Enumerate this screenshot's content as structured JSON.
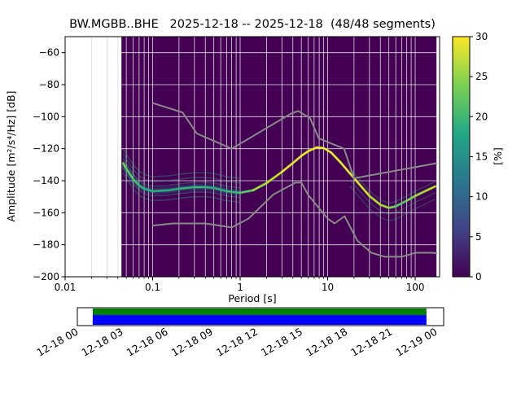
{
  "chart_data": {
    "type": "heatmap",
    "title": "BW.MGBB..BHE   2025-12-18 -- 2025-12-18  (48/48 segments)",
    "xlabel": "Period [s]",
    "ylabel": "Amplitude [m²/s⁴/Hz] [dB]",
    "colorbar_label": "[%]",
    "xlim_log": [
      0.01,
      190
    ],
    "ylim": [
      -200,
      -50
    ],
    "xtick_values": [
      0.01,
      0.1,
      1,
      10,
      100
    ],
    "xtick_labels": [
      "0.01",
      "0.1",
      "1",
      "10",
      "100"
    ],
    "ytick_values": [
      -60,
      -80,
      -100,
      -120,
      -140,
      -160,
      -180,
      -200
    ],
    "ytick_labels": [
      "−60",
      "−80",
      "−100",
      "−120",
      "−140",
      "−160",
      "−180",
      "−200"
    ],
    "background_color": "#440154",
    "grid_color": "#ffffff",
    "grid_color_no_data": "#d9d9d9",
    "data_extent": {
      "period_min": 0.044,
      "period_max": 175
    },
    "colorbar": {
      "min": 0,
      "max": 30,
      "ticks": [
        0,
        5,
        10,
        15,
        20,
        25,
        30
      ],
      "colors": [
        "#440154",
        "#414487",
        "#2a788e",
        "#22a884",
        "#7ad151",
        "#fde725"
      ]
    },
    "noise_models": {
      "color": "#8a8a8a",
      "high": [
        [
          0.1,
          -91.5
        ],
        [
          0.22,
          -97.4
        ],
        [
          0.32,
          -110.5
        ],
        [
          0.8,
          -120.0
        ],
        [
          3.8,
          -98.1
        ],
        [
          4.6,
          -96.5
        ],
        [
          6.3,
          -101.0
        ],
        [
          7.9,
          -113.5
        ],
        [
          15.4,
          -120.0
        ],
        [
          20.0,
          -138.5
        ],
        [
          178,
          -129.0
        ]
      ],
      "low": [
        [
          0.1,
          -168.0
        ],
        [
          0.17,
          -166.7
        ],
        [
          0.4,
          -166.7
        ],
        [
          0.8,
          -169.2
        ],
        [
          1.24,
          -163.7
        ],
        [
          2.4,
          -148.6
        ],
        [
          4.3,
          -141.1
        ],
        [
          5.0,
          -141.1
        ],
        [
          6.0,
          -149.0
        ],
        [
          10.0,
          -163.7
        ],
        [
          12.0,
          -166.7
        ],
        [
          15.6,
          -162.1
        ],
        [
          21.9,
          -177.5
        ],
        [
          31.6,
          -185.0
        ],
        [
          45.0,
          -187.5
        ],
        [
          70.0,
          -187.5
        ],
        [
          101.0,
          -185.0
        ],
        [
          154.0,
          -185.0
        ],
        [
          178,
          -185.2
        ]
      ]
    },
    "psd_mode": [
      [
        0.046,
        -129.0,
        "#7ad151"
      ],
      [
        0.05,
        -132.5,
        "#5ec962"
      ],
      [
        0.06,
        -139.0,
        "#44bf70"
      ],
      [
        0.07,
        -143.0,
        "#35b779"
      ],
      [
        0.08,
        -145.0,
        "#2ab07f"
      ],
      [
        0.1,
        -146.5,
        "#28ae80"
      ],
      [
        0.15,
        -146.0,
        "#25ac82"
      ],
      [
        0.2,
        -145.0,
        "#31b57b"
      ],
      [
        0.3,
        -144.0,
        "#35b779"
      ],
      [
        0.4,
        -144.0,
        "#2db27d"
      ],
      [
        0.5,
        -144.5,
        "#28ae80"
      ],
      [
        0.7,
        -146.5,
        "#35b779"
      ],
      [
        1.0,
        -147.5,
        "#5ec962"
      ],
      [
        1.4,
        -146.0,
        "#aadc32"
      ],
      [
        2.0,
        -141.5,
        "#d2e21b"
      ],
      [
        3.0,
        -134.5,
        "#fde725"
      ],
      [
        4.0,
        -129.0,
        "#fde725"
      ],
      [
        5.0,
        -124.5,
        "#fde725"
      ],
      [
        6.0,
        -121.5,
        "#fde725"
      ],
      [
        7.5,
        -119.2,
        "#fde725"
      ],
      [
        9.0,
        -119.6,
        "#fde725"
      ],
      [
        11,
        -122.5,
        "#fde725"
      ],
      [
        14,
        -128.5,
        "#fde725"
      ],
      [
        18,
        -135.5,
        "#f1e51d"
      ],
      [
        25,
        -144.5,
        "#dde318"
      ],
      [
        30,
        -149.5,
        "#c2df23"
      ],
      [
        40,
        -155.0,
        "#aadc32"
      ],
      [
        50,
        -157.0,
        "#84d44b"
      ],
      [
        60,
        -156.0,
        "#5ec962"
      ],
      [
        80,
        -152.5,
        "#84d44b"
      ],
      [
        100,
        -149.5,
        "#aadc32"
      ],
      [
        130,
        -146.5,
        "#c2df23"
      ],
      [
        170,
        -143.5,
        "#dde318"
      ]
    ],
    "spread_bands": [
      {
        "range": [
          0.044,
          178
        ],
        "offsets": [
          0
        ],
        "color": "#26a784",
        "width": 4,
        "opacity": 0.3
      },
      {
        "range": [
          0.044,
          1.15
        ],
        "offsets": [
          0
        ],
        "color": "#21918c",
        "width": 8,
        "opacity": 0.25
      },
      {
        "range": [
          0.044,
          1.15
        ],
        "offsets": [
          3,
          -3,
          6,
          -6,
          9
        ],
        "color": "#2fb47c",
        "width": 1.6,
        "opacity": 0.33
      },
      {
        "range": [
          16,
          178
        ],
        "offsets": [
          3,
          -4,
          -8
        ],
        "color": "#2fb47c",
        "width": 1.5,
        "opacity": 0.3
      }
    ]
  },
  "timeline": {
    "labels": [
      "12-18 00",
      "12-18 03",
      "12-18 06",
      "12-18 09",
      "12-18 12",
      "12-18 15",
      "12-18 18",
      "12-18 21",
      "12-19 00"
    ],
    "coverage_frac": [
      0.042,
      0.953
    ],
    "top_bar_color": "#008000",
    "bottom_bar_color": "#0000ff"
  }
}
